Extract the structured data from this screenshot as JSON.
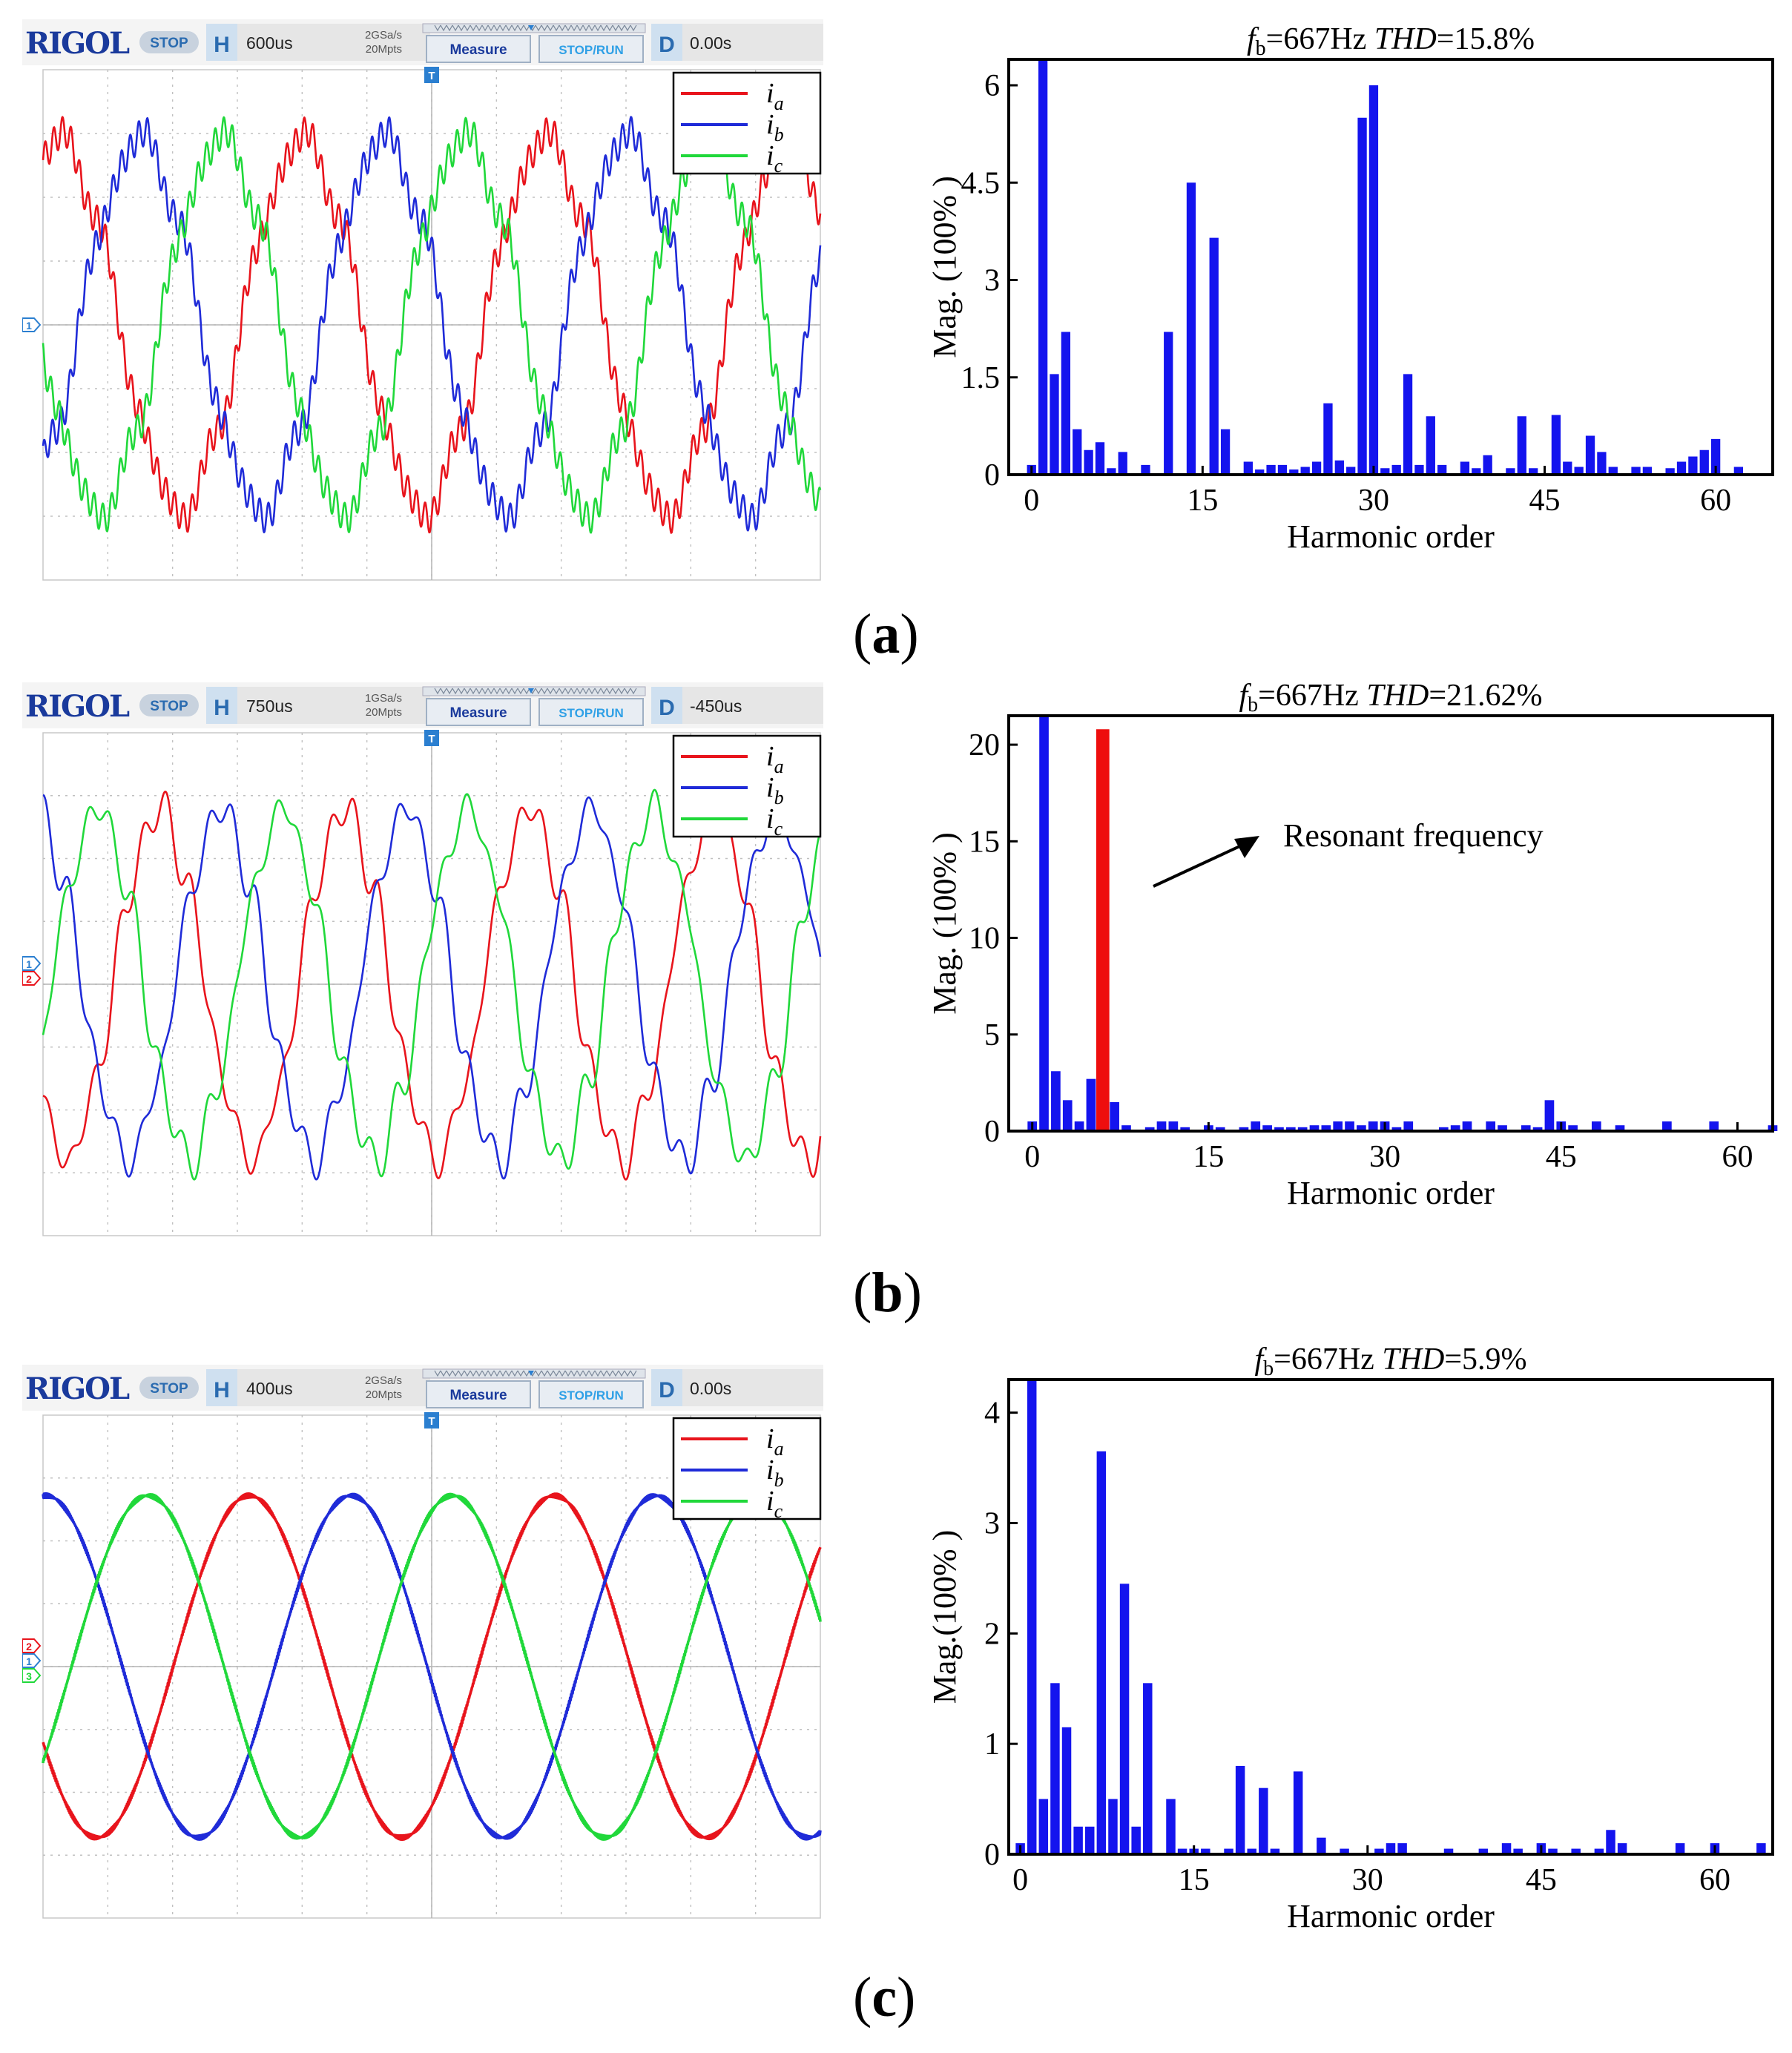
{
  "panels": [
    {
      "label_open": "(",
      "label_letter": "a",
      "label_close": ")",
      "scope": {
        "brand": "RIGOL",
        "state": "STOP",
        "h_key": "H",
        "h_value": "600us",
        "rate_line1": "2GSa/s",
        "rate_line2": "20Mpts",
        "measure": "Measure",
        "stoprun": "STOP/RUN",
        "d_key": "D",
        "d_value": "0.00s",
        "channel_markers": [
          "1"
        ],
        "legend": [
          {
            "name": "i",
            "sub": "a",
            "color": "#e8141c"
          },
          {
            "name": "i",
            "sub": "b",
            "color": "#1f2bd8"
          },
          {
            "name": "i",
            "sub": "c",
            "color": "#20d83a"
          }
        ],
        "waves": {
          "cycles": 3.2,
          "phase_a": 1.15,
          "amp": 0.72,
          "ripple": 0.08,
          "ripple_n": 90,
          "clean": false
        }
      },
      "chart_data": {
        "type": "bar",
        "title_fb": "f",
        "title_sub": "b",
        "title_eq": "=667Hz ",
        "title_thd": "THD",
        "title_val": "=15.8%",
        "xlabel": "Harmonic order",
        "ylabel": "Mag. (100% )",
        "xlim": [
          -2,
          65
        ],
        "ylim": [
          0,
          6.4
        ],
        "xticks": [
          0,
          15,
          30,
          45,
          60
        ],
        "yticks": [
          0,
          1.5,
          3,
          4.5,
          6
        ],
        "ytick_labels": [
          "0",
          "1.5",
          "3",
          "4.5",
          "6"
        ],
        "series": [
          {
            "name": "harmonics",
            "color": "#1414ee",
            "values": [
              [
                0,
                0.15
              ],
              [
                1,
                6.4
              ],
              [
                2,
                1.55
              ],
              [
                3,
                2.2
              ],
              [
                4,
                0.7
              ],
              [
                5,
                0.38
              ],
              [
                6,
                0.5
              ],
              [
                7,
                0.1
              ],
              [
                8,
                0.35
              ],
              [
                10,
                0.15
              ],
              [
                12,
                2.2
              ],
              [
                14,
                4.5
              ],
              [
                16,
                3.65
              ],
              [
                17,
                0.7
              ],
              [
                19,
                0.2
              ],
              [
                20,
                0.08
              ],
              [
                21,
                0.15
              ],
              [
                22,
                0.15
              ],
              [
                23,
                0.08
              ],
              [
                24,
                0.12
              ],
              [
                25,
                0.2
              ],
              [
                26,
                1.1
              ],
              [
                27,
                0.22
              ],
              [
                28,
                0.12
              ],
              [
                29,
                5.5
              ],
              [
                30,
                6.0
              ],
              [
                31,
                0.1
              ],
              [
                32,
                0.15
              ],
              [
                33,
                1.55
              ],
              [
                34,
                0.15
              ],
              [
                35,
                0.9
              ],
              [
                36,
                0.15
              ],
              [
                38,
                0.2
              ],
              [
                39,
                0.1
              ],
              [
                40,
                0.3
              ],
              [
                42,
                0.1
              ],
              [
                43,
                0.9
              ],
              [
                44,
                0.1
              ],
              [
                46,
                0.92
              ],
              [
                47,
                0.2
              ],
              [
                48,
                0.12
              ],
              [
                49,
                0.6
              ],
              [
                50,
                0.35
              ],
              [
                51,
                0.12
              ],
              [
                53,
                0.12
              ],
              [
                54,
                0.12
              ],
              [
                56,
                0.1
              ],
              [
                57,
                0.2
              ],
              [
                58,
                0.28
              ],
              [
                59,
                0.38
              ],
              [
                60,
                0.55
              ],
              [
                62,
                0.12
              ]
            ]
          }
        ],
        "highlight": []
      }
    },
    {
      "label_open": "(",
      "label_letter": "b",
      "label_close": ")",
      "scope": {
        "brand": "RIGOL",
        "state": "STOP",
        "h_key": "H",
        "h_value": "750us",
        "rate_line1": "1GSa/s",
        "rate_line2": "20Mpts",
        "measure": "Measure",
        "stoprun": "STOP/RUN",
        "d_key": "D",
        "d_value": "-450us",
        "channel_markers": [
          "1",
          "2"
        ],
        "legend": [
          {
            "name": "i",
            "sub": "a",
            "color": "#e8141c"
          },
          {
            "name": "i",
            "sub": "b",
            "color": "#1f2bd8"
          },
          {
            "name": "i",
            "sub": "c",
            "color": "#20d83a"
          }
        ],
        "waves": {
          "cycles": 4.2,
          "phase_a": 3.9,
          "amp": 0.68,
          "ripple": 0.09,
          "ripple_n": 33,
          "clean": false
        }
      },
      "chart_data": {
        "type": "bar",
        "title_fb": "f",
        "title_sub": "b",
        "title_eq": "=667Hz ",
        "title_thd": "THD",
        "title_val": "=21.62%",
        "xlabel": "Harmonic order",
        "ylabel": "Mag. (100% )",
        "xlim": [
          -2,
          63
        ],
        "ylim": [
          0,
          21.5
        ],
        "xticks": [
          0,
          15,
          30,
          45,
          60
        ],
        "yticks": [
          0,
          5,
          10,
          15,
          20
        ],
        "ytick_labels": [
          "0",
          "5",
          "10",
          "15",
          "20"
        ],
        "annotation": "Resonant frequency",
        "series": [
          {
            "name": "harmonics",
            "color": "#1414ee",
            "values": [
              [
                0,
                0.5
              ],
              [
                1,
                21.5
              ],
              [
                2,
                3.1
              ],
              [
                3,
                1.6
              ],
              [
                4,
                0.5
              ],
              [
                5,
                2.7
              ],
              [
                7,
                1.5
              ],
              [
                8,
                0.3
              ],
              [
                10,
                0.2
              ],
              [
                11,
                0.5
              ],
              [
                12,
                0.5
              ],
              [
                13,
                0.2
              ],
              [
                15,
                0.3
              ],
              [
                16,
                0.2
              ],
              [
                18,
                0.2
              ],
              [
                19,
                0.5
              ],
              [
                20,
                0.3
              ],
              [
                21,
                0.2
              ],
              [
                22,
                0.2
              ],
              [
                23,
                0.2
              ],
              [
                24,
                0.3
              ],
              [
                25,
                0.3
              ],
              [
                26,
                0.5
              ],
              [
                27,
                0.5
              ],
              [
                28,
                0.3
              ],
              [
                29,
                0.5
              ],
              [
                30,
                0.5
              ],
              [
                31,
                0.2
              ],
              [
                32,
                0.5
              ],
              [
                35,
                0.2
              ],
              [
                36,
                0.3
              ],
              [
                37,
                0.5
              ],
              [
                39,
                0.5
              ],
              [
                40,
                0.3
              ],
              [
                42,
                0.3
              ],
              [
                43,
                0.2
              ],
              [
                44,
                1.6
              ],
              [
                45,
                0.5
              ],
              [
                46,
                0.3
              ],
              [
                48,
                0.5
              ],
              [
                50,
                0.3
              ],
              [
                54,
                0.5
              ],
              [
                58,
                0.5
              ],
              [
                63,
                0.3
              ]
            ]
          }
        ],
        "highlight": [
          {
            "x": 6,
            "value": 20.8,
            "color": "#ee0e0e"
          }
        ]
      }
    },
    {
      "label_open": "(",
      "label_letter": "c",
      "label_close": ")",
      "scope": {
        "brand": "RIGOL",
        "state": "STOP",
        "h_key": "H",
        "h_value": "400us",
        "rate_line1": "2GSa/s",
        "rate_line2": "20Mpts",
        "measure": "Measure",
        "stoprun": "STOP/RUN",
        "d_key": "D",
        "d_value": "0.00s",
        "channel_markers": [
          "2",
          "1",
          "3"
        ],
        "legend": [
          {
            "name": "i",
            "sub": "a",
            "color": "#e8141c"
          },
          {
            "name": "i",
            "sub": "b",
            "color": "#1f2bd8"
          },
          {
            "name": "i",
            "sub": "c",
            "color": "#20d83a"
          }
        ],
        "waves": {
          "cycles": 2.55,
          "phase_a": 3.6,
          "amp": 0.68,
          "ripple": 0.012,
          "ripple_n": 260,
          "clean": true
        }
      },
      "chart_data": {
        "type": "bar",
        "title_fb": "f",
        "title_sub": "b",
        "title_eq": "=667Hz ",
        "title_thd": "THD",
        "title_val": "=5.9%",
        "xlabel": "Harmonic order",
        "ylabel": "Mag.(100% )",
        "xlim": [
          -1,
          65
        ],
        "ylim": [
          0,
          4.3
        ],
        "xticks": [
          0,
          15,
          30,
          45,
          60
        ],
        "yticks": [
          0,
          1,
          2,
          3,
          4
        ],
        "ytick_labels": [
          "0",
          "1",
          "2",
          "3",
          "4"
        ],
        "series": [
          {
            "name": "harmonics",
            "color": "#1414ee",
            "values": [
              [
                0,
                0.1
              ],
              [
                1,
                4.3
              ],
              [
                2,
                0.5
              ],
              [
                3,
                1.55
              ],
              [
                4,
                1.15
              ],
              [
                5,
                0.25
              ],
              [
                6,
                0.25
              ],
              [
                7,
                3.65
              ],
              [
                8,
                0.5
              ],
              [
                9,
                2.45
              ],
              [
                10,
                0.25
              ],
              [
                11,
                1.55
              ],
              [
                13,
                0.5
              ],
              [
                14,
                0.05
              ],
              [
                15,
                0.05
              ],
              [
                16,
                0.05
              ],
              [
                18,
                0.05
              ],
              [
                19,
                0.8
              ],
              [
                20,
                0.05
              ],
              [
                21,
                0.6
              ],
              [
                22,
                0.05
              ],
              [
                24,
                0.75
              ],
              [
                26,
                0.15
              ],
              [
                28,
                0.05
              ],
              [
                31,
                0.05
              ],
              [
                32,
                0.1
              ],
              [
                33,
                0.1
              ],
              [
                37,
                0.05
              ],
              [
                40,
                0.05
              ],
              [
                42,
                0.1
              ],
              [
                43,
                0.05
              ],
              [
                45,
                0.1
              ],
              [
                46,
                0.05
              ],
              [
                48,
                0.05
              ],
              [
                50,
                0.05
              ],
              [
                51,
                0.22
              ],
              [
                52,
                0.1
              ],
              [
                57,
                0.1
              ],
              [
                60,
                0.1
              ],
              [
                64,
                0.1
              ]
            ]
          }
        ],
        "highlight": []
      }
    }
  ]
}
